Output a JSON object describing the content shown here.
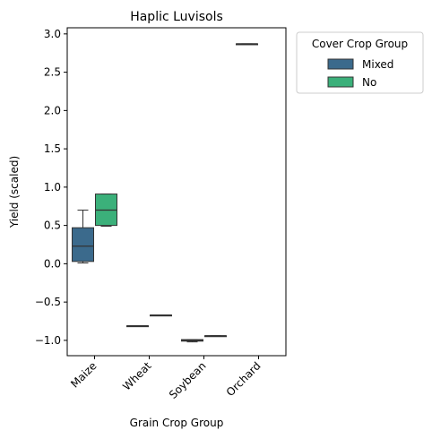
{
  "chart_data": {
    "type": "box",
    "title": "Haplic Luvisols",
    "xlabel": "Grain Crop Group",
    "ylabel": "Yield (scaled)",
    "ylim": [
      -1.2,
      3.08
    ],
    "yticks": [
      3.0,
      2.5,
      2.0,
      1.5,
      1.0,
      0.5,
      0.0,
      -0.5,
      -1.0
    ],
    "ytick_labels": [
      "3.0",
      "2.5",
      "2.0",
      "1.5",
      "1.0",
      "0.5",
      "0.0",
      "−0.5",
      "−1.0"
    ],
    "categories": [
      "Maize",
      "Wheat",
      "Soybean",
      "Orchard"
    ],
    "grid": false,
    "legend": {
      "title": "Cover Crop Group",
      "placement": "outside-top-right",
      "entries": [
        "Mixed",
        "No"
      ]
    },
    "series": [
      {
        "name": "Mixed",
        "color": "#3b6a8c",
        "boxes": [
          {
            "category": "Maize",
            "min": 0.01,
            "q1": 0.03,
            "median": 0.23,
            "q3": 0.47,
            "max": 0.7
          },
          {
            "category": "Wheat",
            "min": -0.81,
            "q1": -0.81,
            "median": -0.81,
            "q3": -0.81,
            "max": -0.81
          },
          {
            "category": "Soybean",
            "min": -1.02,
            "q1": -1.01,
            "median": -1.0,
            "q3": -0.99,
            "max": -0.99
          },
          {
            "category": "Orchard",
            "min": 2.87,
            "q1": 2.87,
            "median": 2.87,
            "q3": 2.87,
            "max": 2.87
          }
        ]
      },
      {
        "name": "No",
        "color": "#3bb07a",
        "boxes": [
          {
            "category": "Maize",
            "min": 0.49,
            "q1": 0.5,
            "median": 0.7,
            "q3": 0.91,
            "max": 0.91
          },
          {
            "category": "Wheat",
            "min": -0.67,
            "q1": -0.67,
            "median": -0.67,
            "q3": -0.67,
            "max": -0.67
          },
          {
            "category": "Soybean",
            "min": -0.94,
            "q1": -0.94,
            "median": -0.94,
            "q3": -0.94,
            "max": -0.94
          }
        ]
      }
    ]
  }
}
